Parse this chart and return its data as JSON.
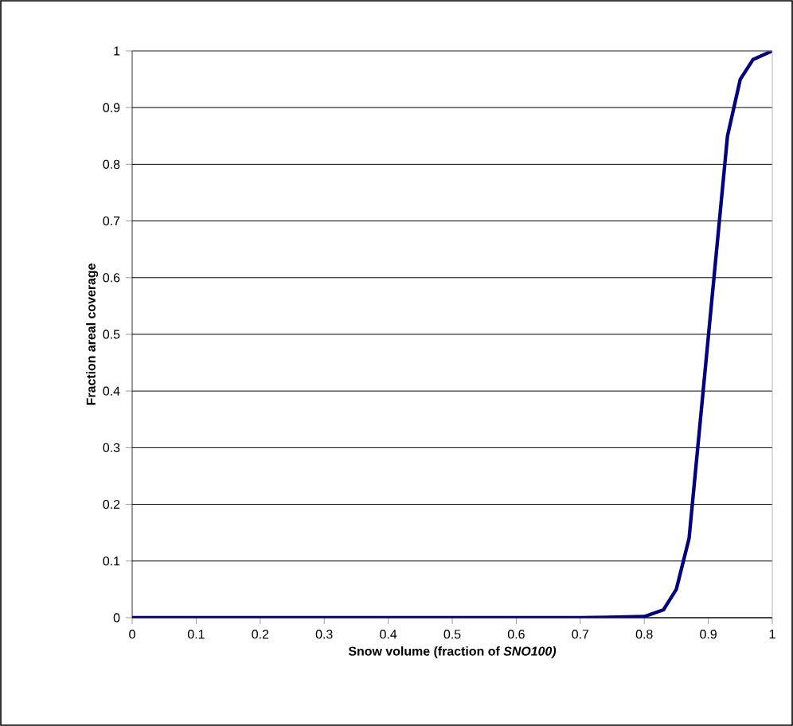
{
  "chart_data": {
    "type": "line",
    "xlabel": "Snow volume (fraction of *SNO100)*",
    "ylabel": "Fraction areal coverage",
    "x": [
      0,
      0.7,
      0.8,
      0.83,
      0.85,
      0.87,
      0.93,
      0.95,
      0.97,
      1
    ],
    "series": [
      {
        "color": "#000080",
        "values": [
          0,
          0,
          0.002,
          0.014,
          0.05,
          0.14,
          0.85,
          0.95,
          0.985,
          1
        ]
      }
    ],
    "xlim": [
      0,
      1
    ],
    "ylim": [
      0,
      1
    ],
    "xticks": [
      0,
      0.1,
      0.2,
      0.3,
      0.4,
      0.5,
      0.6,
      0.7,
      0.8,
      0.9,
      1
    ],
    "yticks": [
      0,
      0.1,
      0.2,
      0.3,
      0.4,
      0.5,
      0.6,
      0.7,
      0.8,
      0.9,
      1
    ],
    "grid": "y",
    "marker": "none",
    "line_style": "solid"
  }
}
